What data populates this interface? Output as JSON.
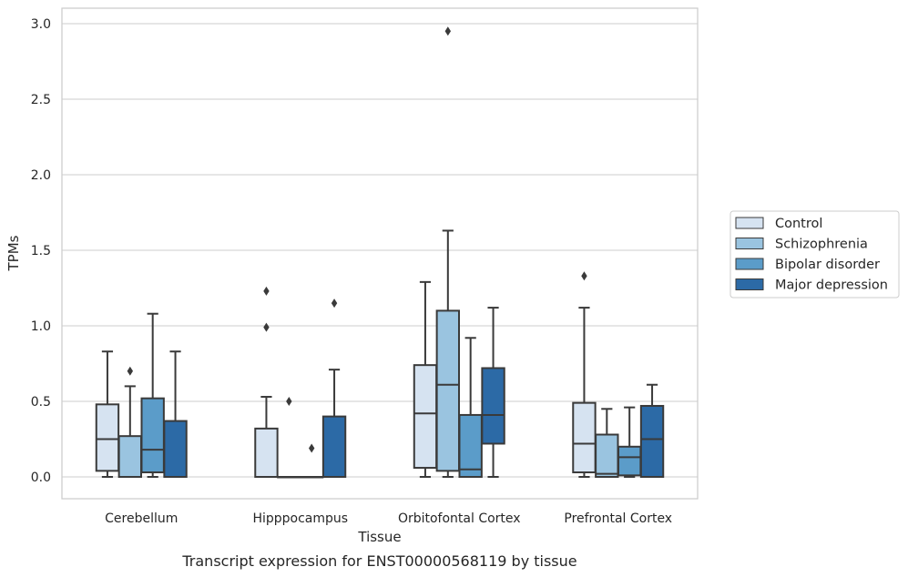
{
  "chart_data": {
    "type": "boxplot",
    "title": "",
    "caption": "Transcript expression for ENST00000568119 by tissue",
    "xlabel": "Tissue",
    "ylabel": "TPMs",
    "ylim": [
      -0.14,
      3.1
    ],
    "yticks": [
      "0.0",
      "0.5",
      "1.0",
      "1.5",
      "2.0",
      "2.5",
      "3.0"
    ],
    "grid": "horizontal",
    "legend_position": "right",
    "categories": [
      "Cerebellum",
      "Hipppocampus",
      "Orbitofontal Cortex",
      "Prefrontal Cortex"
    ],
    "series": [
      {
        "name": "Control",
        "color": "#d6e3f1",
        "boxes": [
          {
            "whislo": 0.0,
            "q1": 0.04,
            "med": 0.25,
            "q3": 0.48,
            "whishi": 0.83,
            "fliers": []
          },
          {
            "whislo": 0.0,
            "q1": 0.0,
            "med": 0.0,
            "q3": 0.32,
            "whishi": 0.53,
            "fliers": [
              0.99,
              1.23
            ]
          },
          {
            "whislo": 0.0,
            "q1": 0.06,
            "med": 0.42,
            "q3": 0.74,
            "whishi": 1.29,
            "fliers": []
          },
          {
            "whislo": 0.0,
            "q1": 0.03,
            "med": 0.22,
            "q3": 0.49,
            "whishi": 1.12,
            "fliers": [
              1.33
            ]
          }
        ]
      },
      {
        "name": "Schizophrenia",
        "color": "#9ac4e0",
        "boxes": [
          {
            "whislo": 0.0,
            "q1": 0.0,
            "med": 0.0,
            "q3": 0.27,
            "whishi": 0.6,
            "fliers": [
              0.7
            ]
          },
          {
            "whislo": 0.0,
            "q1": 0.0,
            "med": 0.0,
            "q3": 0.0,
            "whishi": 0.0,
            "fliers": [
              0.5
            ]
          },
          {
            "whislo": 0.0,
            "q1": 0.04,
            "med": 0.61,
            "q3": 1.1,
            "whishi": 1.63,
            "fliers": [
              2.95
            ]
          },
          {
            "whislo": 0.0,
            "q1": 0.0,
            "med": 0.02,
            "q3": 0.28,
            "whishi": 0.45,
            "fliers": []
          }
        ]
      },
      {
        "name": "Bipolar disorder",
        "color": "#5b9cc9",
        "boxes": [
          {
            "whislo": 0.0,
            "q1": 0.03,
            "med": 0.18,
            "q3": 0.52,
            "whishi": 1.08,
            "fliers": []
          },
          {
            "whislo": 0.0,
            "q1": 0.0,
            "med": 0.0,
            "q3": 0.0,
            "whishi": 0.0,
            "fliers": [
              0.19
            ]
          },
          {
            "whislo": 0.0,
            "q1": 0.0,
            "med": 0.05,
            "q3": 0.41,
            "whishi": 0.92,
            "fliers": []
          },
          {
            "whislo": 0.0,
            "q1": 0.01,
            "med": 0.13,
            "q3": 0.2,
            "whishi": 0.46,
            "fliers": []
          }
        ]
      },
      {
        "name": "Major depression",
        "color": "#2c6aa6",
        "boxes": [
          {
            "whislo": 0.0,
            "q1": 0.0,
            "med": 0.0,
            "q3": 0.37,
            "whishi": 0.83,
            "fliers": []
          },
          {
            "whislo": 0.0,
            "q1": 0.0,
            "med": 0.0,
            "q3": 0.4,
            "whishi": 0.71,
            "fliers": [
              1.15
            ]
          },
          {
            "whislo": 0.0,
            "q1": 0.22,
            "med": 0.41,
            "q3": 0.72,
            "whishi": 1.12,
            "fliers": []
          },
          {
            "whislo": 0.0,
            "q1": 0.0,
            "med": 0.25,
            "q3": 0.47,
            "whishi": 0.61,
            "fliers": []
          }
        ]
      }
    ]
  }
}
